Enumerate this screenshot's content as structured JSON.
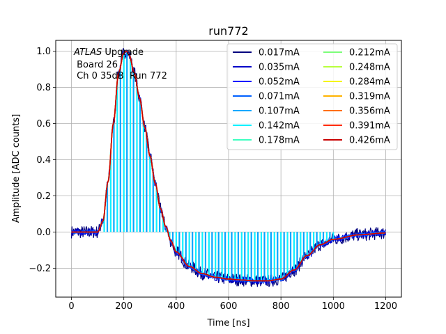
{
  "chart_data": {
    "type": "line",
    "title": "run772",
    "xlabel": "Time [ns]",
    "ylabel": "Amplitude [ADC counts]",
    "xlim": [
      -60,
      1260
    ],
    "ylim": [
      -0.36,
      1.06
    ],
    "xticks": [
      0,
      200,
      400,
      600,
      800,
      1000,
      1200
    ],
    "yticks": [
      -0.2,
      0.0,
      0.2,
      0.4,
      0.6,
      0.8,
      1.0
    ],
    "ytick_labels": [
      "−0.2",
      "0.0",
      "0.2",
      "0.4",
      "0.6",
      "0.8",
      "1.0"
    ],
    "grid": true,
    "legend_position": "top-right",
    "legend_columns": 2,
    "annotation": {
      "line1_italic": "ATLAS",
      "line1_rest": " Upgrade",
      "line2": " Board 26",
      "line3": " Ch 0 35dB  Run 772"
    },
    "pulse_shape": {
      "x": [
        0,
        100,
        120,
        140,
        160,
        180,
        200,
        210,
        220,
        240,
        260,
        280,
        300,
        320,
        340,
        360,
        380,
        400,
        450,
        500,
        550,
        600,
        650,
        700,
        750,
        800,
        850,
        900,
        950,
        1000,
        1100,
        1200
      ],
      "y": [
        0.0,
        0.0,
        0.06,
        0.28,
        0.6,
        0.88,
        0.99,
        1.0,
        0.98,
        0.88,
        0.74,
        0.58,
        0.42,
        0.27,
        0.13,
        0.03,
        -0.05,
        -0.11,
        -0.19,
        -0.23,
        -0.25,
        -0.26,
        -0.265,
        -0.27,
        -0.27,
        -0.26,
        -0.21,
        -0.13,
        -0.07,
        -0.04,
        -0.015,
        -0.005
      ]
    },
    "sampling_period_ns": 25,
    "series": [
      {
        "name": "0.017mA",
        "color": "#00007f",
        "noise": 0.035
      },
      {
        "name": "0.035mA",
        "color": "#0000c8",
        "noise": 0.02
      },
      {
        "name": "0.052mA",
        "color": "#0014ff",
        "noise": 0.012
      },
      {
        "name": "0.071mA",
        "color": "#0060ff",
        "noise": 0.01
      },
      {
        "name": "0.107mA",
        "color": "#00a8ff",
        "noise": 0.0,
        "stems": true
      },
      {
        "name": "0.142mA",
        "color": "#0ff0ff",
        "noise": 0.0,
        "stems": true
      },
      {
        "name": "0.178mA",
        "color": "#3dffc0",
        "noise": 0.0
      },
      {
        "name": "0.212mA",
        "color": "#7dff7a",
        "noise": 0.0
      },
      {
        "name": "0.248mA",
        "color": "#b8ff3d",
        "noise": 0.0
      },
      {
        "name": "0.284mA",
        "color": "#f5f500",
        "noise": 0.0
      },
      {
        "name": "0.319mA",
        "color": "#ffb300",
        "noise": 0.0
      },
      {
        "name": "0.356mA",
        "color": "#ff6e00",
        "noise": 0.0
      },
      {
        "name": "0.391mA",
        "color": "#ff2a00",
        "noise": 0.0
      },
      {
        "name": "0.426mA",
        "color": "#c80000",
        "noise": 0.0
      }
    ]
  }
}
